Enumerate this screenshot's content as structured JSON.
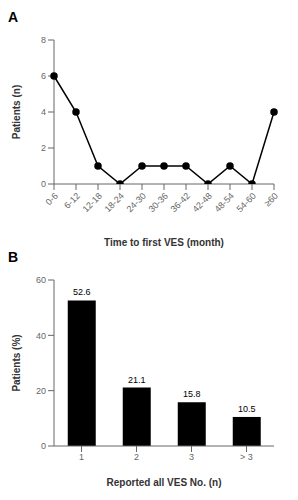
{
  "chart_data": [
    {
      "type": "line",
      "title": "A",
      "categories": [
        "0-6",
        "6-12",
        "12-18",
        "18-24",
        "24-30",
        "30-36",
        "36-42",
        "42-48",
        "48-54",
        "54-60",
        "≥60"
      ],
      "values": [
        6,
        4,
        1,
        0,
        1,
        1,
        1,
        0,
        1,
        0,
        4
      ],
      "ylabel": "Patients (n)",
      "xlabel": "Time to first VES (month)",
      "ylim": [
        0,
        8
      ],
      "yticks": [
        0,
        2,
        4,
        6,
        8
      ],
      "color": "#000000",
      "marker": "o"
    },
    {
      "type": "bar",
      "title": "B",
      "categories": [
        "1",
        "2",
        "3",
        "> 3"
      ],
      "values": [
        52.6,
        21.1,
        15.8,
        10.5
      ],
      "data_labels": true,
      "ylabel": "Patients (%)",
      "xlabel": "Reported all VES No. (n)",
      "ylim": [
        0,
        60
      ],
      "yticks": [
        0,
        20,
        40,
        60
      ],
      "color": "#000000"
    }
  ]
}
